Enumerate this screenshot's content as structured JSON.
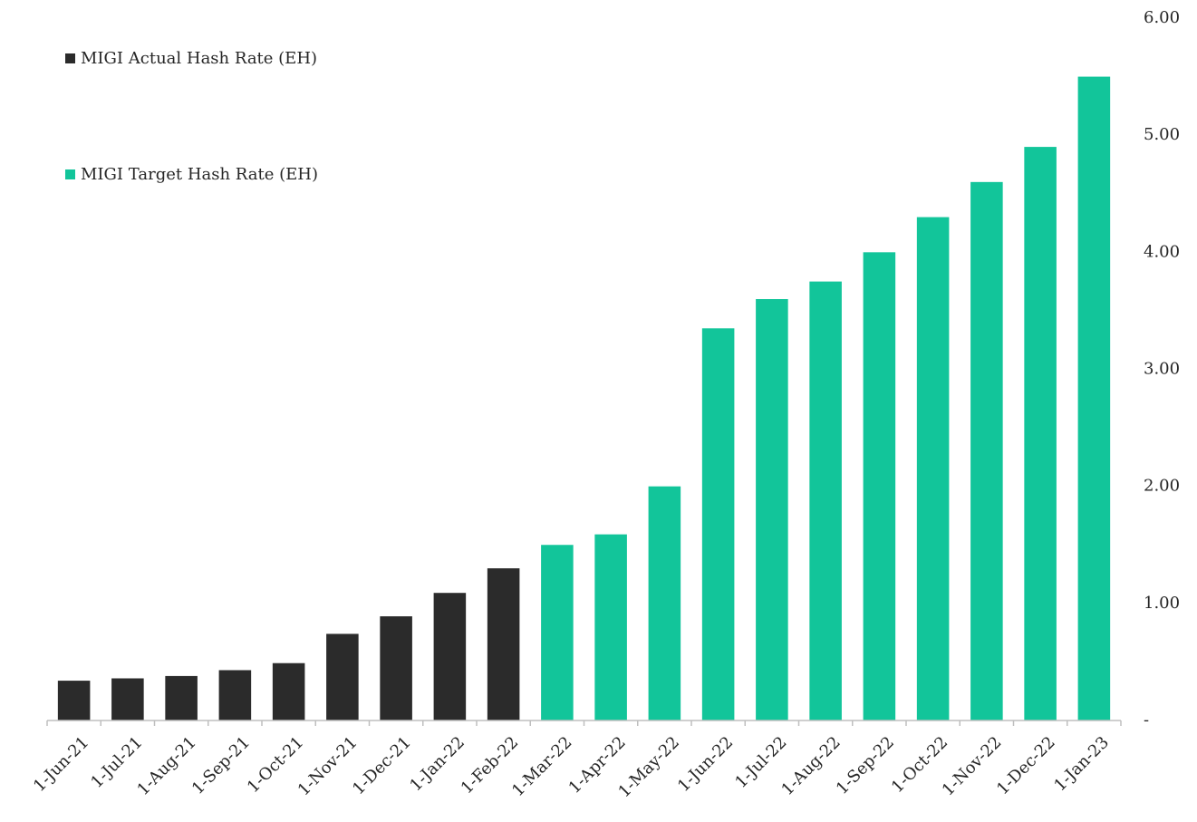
{
  "colors": {
    "actual": "#2b2b2b",
    "target": "#12c59a",
    "axis": "#bfbfbf",
    "text": "#262626"
  },
  "chart_data": {
    "type": "bar",
    "title": "",
    "xlabel": "",
    "ylabel": "",
    "y_axis_position": "right",
    "ylim": [
      0,
      6
    ],
    "y_ticks": [
      0,
      1,
      2,
      3,
      4,
      5,
      6
    ],
    "y_tick_labels": [
      "-",
      "1.00",
      "2.00",
      "3.00",
      "4.00",
      "5.00",
      "6.00"
    ],
    "legend_position": "top-left",
    "categories": [
      "1-Jun-21",
      "1-Jul-21",
      "1-Aug-21",
      "1-Sep-21",
      "1-Oct-21",
      "1-Nov-21",
      "1-Dec-21",
      "1-Jan-22",
      "1-Feb-22",
      "1-Mar-22",
      "1-Apr-22",
      "1-May-22",
      "1-Jun-22",
      "1-Jul-22",
      "1-Aug-22",
      "1-Sep-22",
      "1-Oct-22",
      "1-Nov-22",
      "1-Dec-22",
      "1-Jan-23"
    ],
    "series": [
      {
        "name": "MIGI Actual Hash Rate (EH)",
        "color": "#2b2b2b",
        "values": [
          0.34,
          0.36,
          0.38,
          0.43,
          0.49,
          0.74,
          0.89,
          1.09,
          1.3,
          null,
          null,
          null,
          null,
          null,
          null,
          null,
          null,
          null,
          null,
          null
        ]
      },
      {
        "name": "MIGI Target Hash Rate (EH)",
        "color": "#12c59a",
        "values": [
          null,
          null,
          null,
          null,
          null,
          null,
          null,
          null,
          null,
          1.5,
          1.59,
          2.0,
          3.35,
          3.6,
          3.75,
          4.0,
          4.3,
          4.6,
          4.9,
          5.5
        ]
      }
    ]
  }
}
